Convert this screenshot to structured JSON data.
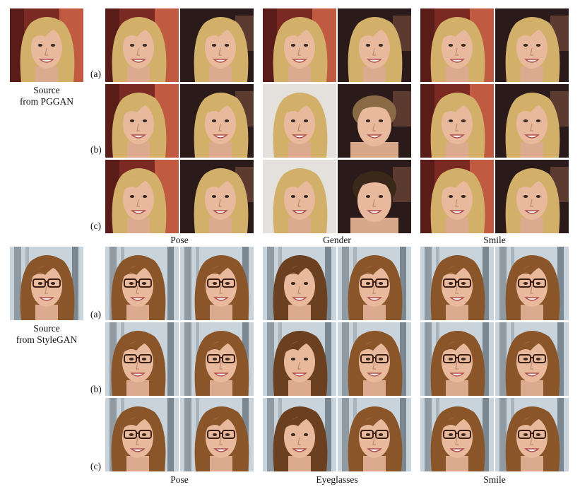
{
  "top": {
    "source_caption": "Source",
    "source_model": "from PGGAN",
    "row_labels": [
      "(a)",
      "(b)",
      "(c)"
    ],
    "columns": [
      "Pose",
      "Gender",
      "Smile"
    ]
  },
  "bottom": {
    "source_caption": "Source",
    "source_model": "from StyleGAN",
    "row_labels": [
      "(a)",
      "(b)",
      "(c)"
    ],
    "columns": [
      "Pose",
      "Eyeglasses",
      "Smile"
    ]
  },
  "colors": {
    "blonde_hair": "#d2b06a",
    "brown_hair": "#8a5528",
    "skin": "#e8b99c",
    "dark_bg": "#2a1b1a",
    "light_bg": "#c9d3db",
    "glasses": "#3a1e14"
  }
}
